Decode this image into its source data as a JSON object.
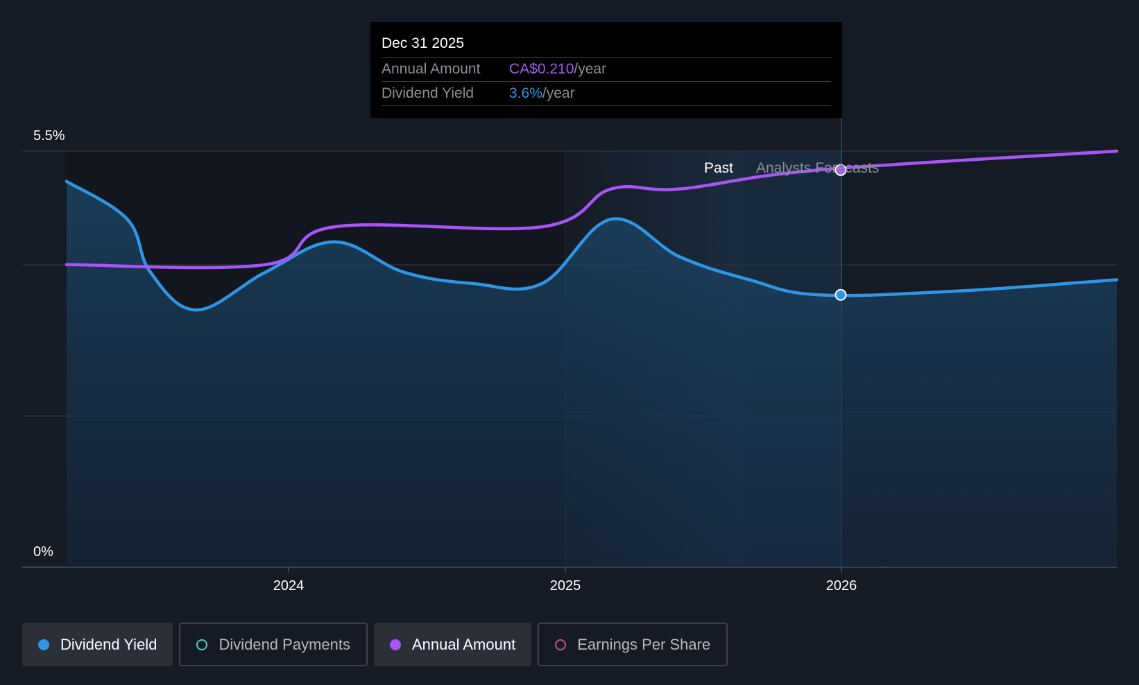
{
  "chart_data": {
    "type": "line",
    "y_axis": {
      "ticks": [
        "5.5%",
        "0%"
      ],
      "min": 0,
      "max": 5.5,
      "unit": "%"
    },
    "x_axis": {
      "ticks": [
        "2024",
        "2025",
        "2026"
      ],
      "range": [
        "2023-04",
        "2026-12"
      ]
    },
    "regions": {
      "past_label": "Past",
      "forecast_label": "Analysts Forecasts"
    },
    "series": [
      {
        "name": "Dividend Yield",
        "color": "#2f96e6",
        "points": [
          [
            "2023-04",
            5.1
          ],
          [
            "2023-06",
            4.6
          ],
          [
            "2023-07",
            3.9
          ],
          [
            "2023-09",
            3.4
          ],
          [
            "2023-12",
            3.9
          ],
          [
            "2024-03",
            4.3
          ],
          [
            "2024-06",
            3.9
          ],
          [
            "2024-09",
            3.75
          ],
          [
            "2024-12",
            3.75
          ],
          [
            "2025-03",
            4.6
          ],
          [
            "2025-06",
            4.1
          ],
          [
            "2025-09",
            3.8
          ],
          [
            "2025-12",
            3.6
          ],
          [
            "2026-06",
            3.65
          ],
          [
            "2026-12",
            3.8
          ]
        ]
      },
      {
        "name": "Annual Amount",
        "color": "#a855f7",
        "points": [
          [
            "2023-04",
            4.0
          ],
          [
            "2023-12",
            4.0
          ],
          [
            "2024-03",
            4.5
          ],
          [
            "2024-12",
            4.5
          ],
          [
            "2025-03",
            5.0
          ],
          [
            "2025-06",
            5.0
          ],
          [
            "2025-12",
            5.25
          ],
          [
            "2026-12",
            5.5
          ]
        ]
      }
    ],
    "grid": true
  },
  "tooltip": {
    "date": "Dec 31 2025",
    "rows": [
      {
        "label": "Annual Amount",
        "value": "CA$0.210",
        "unit": "/year",
        "color": "#a855f7"
      },
      {
        "label": "Dividend Yield",
        "value": "3.6%",
        "unit": "/year",
        "color": "#2f96e6"
      }
    ]
  },
  "legend": [
    {
      "label": "Dividend Yield",
      "color": "#2f96e6",
      "active": true,
      "filled": true
    },
    {
      "label": "Dividend Payments",
      "color": "#4fd1c5",
      "active": false,
      "filled": false
    },
    {
      "label": "Annual Amount",
      "color": "#a855f7",
      "active": true,
      "filled": true
    },
    {
      "label": "Earnings Per Share",
      "color": "#d04f8c",
      "active": false,
      "filled": false
    }
  ]
}
